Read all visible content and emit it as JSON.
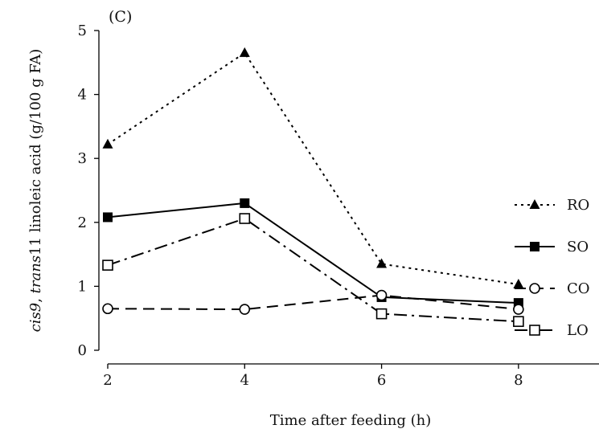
{
  "chart_data": {
    "type": "line",
    "panel_label": "(C)",
    "xlabel": "Time after feeding (h)",
    "ylabel": {
      "part1": "cis9",
      "part2": ", ",
      "part3": "trans",
      "part4": "11 linoleic  acid (g/100 g FA)"
    },
    "x": [
      2,
      4,
      6,
      8
    ],
    "xticks": [
      "2",
      "4",
      "6",
      "8"
    ],
    "xlim": [
      2,
      9
    ],
    "ylim": [
      0,
      5
    ],
    "yticks": [
      "0",
      "1",
      "2",
      "3",
      "4",
      "5"
    ],
    "grid": false,
    "legend_position": "right",
    "series": [
      {
        "name": "RO",
        "values": [
          3.22,
          4.65,
          1.35,
          1.03
        ],
        "marker": "filled-triangle",
        "dash": "dotted",
        "color": "#000000"
      },
      {
        "name": "SO",
        "values": [
          2.08,
          2.3,
          0.83,
          0.74
        ],
        "marker": "filled-square",
        "dash": "solid",
        "color": "#000000"
      },
      {
        "name": "CO",
        "values": [
          0.65,
          0.64,
          0.86,
          0.64
        ],
        "marker": "open-circle",
        "dash": "long-dash",
        "color": "#000000"
      },
      {
        "name": "LO",
        "values": [
          1.33,
          2.06,
          0.57,
          0.45
        ],
        "marker": "open-square",
        "dash": "dash-dot",
        "color": "#000000"
      }
    ]
  }
}
